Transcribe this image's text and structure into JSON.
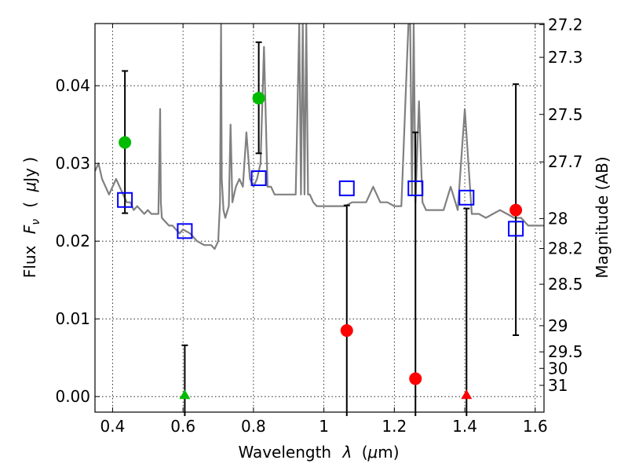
{
  "chart_data": {
    "type": "scatter",
    "xlabel_text": "Wavelength",
    "xlabel_symbol": "λ",
    "xlabel_unit_open": "(",
    "xlabel_unit_mu": "μ",
    "xlabel_unit_rest": "m)",
    "ylabel_text": "Flux",
    "ylabel_symbol": "F",
    "ylabel_subscript": "ν",
    "ylabel_unit_open": "(",
    "ylabel_unit_mu": "μ",
    "ylabel_unit_rest": "Jy )",
    "y2label": "Magnitude (AB)",
    "xlim": [
      0.35,
      1.625
    ],
    "ylim": [
      -0.002,
      0.048
    ],
    "xticks": [
      0.4,
      0.6,
      0.8,
      1.0,
      1.2,
      1.4,
      1.6
    ],
    "xtick_labels": [
      "0.4",
      "0.6",
      "0.8",
      "1",
      "1.2",
      "1.4",
      "1.6"
    ],
    "yticks": [
      0.0,
      0.01,
      0.02,
      0.03,
      0.04
    ],
    "ytick_labels": [
      "0.00",
      "0.01",
      "0.02",
      "0.03",
      "0.04"
    ],
    "mag_ticks": [
      "27.2",
      "27.3",
      "27.5",
      "27.7",
      "28",
      "28.2",
      "28.5",
      "29",
      "29.5",
      "30",
      "31"
    ],
    "grid": true,
    "model_color": "#808080",
    "model_spectrum": {
      "x": [
        0.35,
        0.36,
        0.37,
        0.38,
        0.39,
        0.4,
        0.41,
        0.42,
        0.43,
        0.44,
        0.45,
        0.46,
        0.47,
        0.48,
        0.49,
        0.5,
        0.51,
        0.52,
        0.53,
        0.535,
        0.537,
        0.54,
        0.55,
        0.56,
        0.57,
        0.58,
        0.59,
        0.6,
        0.62,
        0.64,
        0.66,
        0.68,
        0.69,
        0.7,
        0.705,
        0.708,
        0.71,
        0.715,
        0.72,
        0.73,
        0.735,
        0.74,
        0.745,
        0.75,
        0.76,
        0.77,
        0.78,
        0.79,
        0.8,
        0.81,
        0.82,
        0.83,
        0.84,
        0.85,
        0.86,
        0.87,
        0.88,
        0.9,
        0.92,
        0.93,
        0.935,
        0.94,
        0.945,
        0.95,
        0.955,
        0.96,
        0.97,
        0.98,
        1.0,
        1.02,
        1.04,
        1.06,
        1.08,
        1.1,
        1.12,
        1.14,
        1.16,
        1.18,
        1.2,
        1.22,
        1.24,
        1.245,
        1.25,
        1.255,
        1.26,
        1.27,
        1.28,
        1.29,
        1.3,
        1.32,
        1.34,
        1.36,
        1.38,
        1.4,
        1.42,
        1.44,
        1.46,
        1.48,
        1.5,
        1.52,
        1.54,
        1.56,
        1.58,
        1.6,
        1.625
      ],
      "y": [
        0.029,
        0.03,
        0.028,
        0.027,
        0.026,
        0.027,
        0.028,
        0.027,
        0.026,
        0.025,
        0.025,
        0.024,
        0.0245,
        0.024,
        0.0235,
        0.024,
        0.0235,
        0.0235,
        0.0235,
        0.037,
        0.025,
        0.023,
        0.0225,
        0.022,
        0.022,
        0.0215,
        0.021,
        0.0215,
        0.021,
        0.02,
        0.0195,
        0.0195,
        0.019,
        0.02,
        0.025,
        0.048,
        0.028,
        0.024,
        0.023,
        0.0245,
        0.035,
        0.025,
        0.026,
        0.027,
        0.028,
        0.027,
        0.034,
        0.028,
        0.027,
        0.028,
        0.03,
        0.045,
        0.027,
        0.027,
        0.026,
        0.026,
        0.026,
        0.026,
        0.026,
        0.048,
        0.026,
        0.048,
        0.026,
        0.048,
        0.026,
        0.026,
        0.025,
        0.0245,
        0.0245,
        0.0245,
        0.0245,
        0.0245,
        0.025,
        0.025,
        0.025,
        0.027,
        0.025,
        0.025,
        0.0245,
        0.0245,
        0.048,
        0.048,
        0.026,
        0.048,
        0.025,
        0.038,
        0.025,
        0.024,
        0.024,
        0.024,
        0.024,
        0.027,
        0.024,
        0.037,
        0.0235,
        0.0235,
        0.023,
        0.0235,
        0.024,
        0.0235,
        0.023,
        0.023,
        0.022,
        0.022,
        0.022
      ]
    },
    "series": [
      {
        "marker": "square-open",
        "color": "#0000ff",
        "x": [
          0.435,
          0.605,
          0.815,
          1.065,
          1.26,
          1.405,
          1.545
        ],
        "y": [
          0.0253,
          0.0213,
          0.0281,
          0.0268,
          0.0268,
          0.0256,
          0.0216
        ]
      },
      {
        "marker": "circle",
        "color": "#00bb00",
        "x": [
          0.435,
          0.815
        ],
        "y": [
          0.0327,
          0.0384
        ],
        "err_low": [
          0.0236,
          0.0313
        ],
        "err_high": [
          0.0419,
          0.0456
        ]
      },
      {
        "marker": "circle",
        "color": "#ff0000",
        "x": [
          1.065,
          1.26,
          1.545
        ],
        "y": [
          0.0085,
          0.0023,
          0.024
        ],
        "err_low": [
          -0.003,
          -0.003,
          0.0079
        ],
        "err_high": [
          0.0246,
          0.034,
          0.0402
        ]
      },
      {
        "marker": "triangle",
        "color": "#00bb00",
        "x": [
          0.605
        ],
        "y": [
          0.0
        ],
        "err_low": [
          -0.003
        ],
        "err_high": [
          0.0066
        ]
      },
      {
        "marker": "triangle",
        "color": "#ff0000",
        "x": [
          1.405
        ],
        "y": [
          0.0
        ],
        "err_low": [
          -0.003
        ],
        "err_high": [
          0.0242
        ]
      }
    ]
  }
}
